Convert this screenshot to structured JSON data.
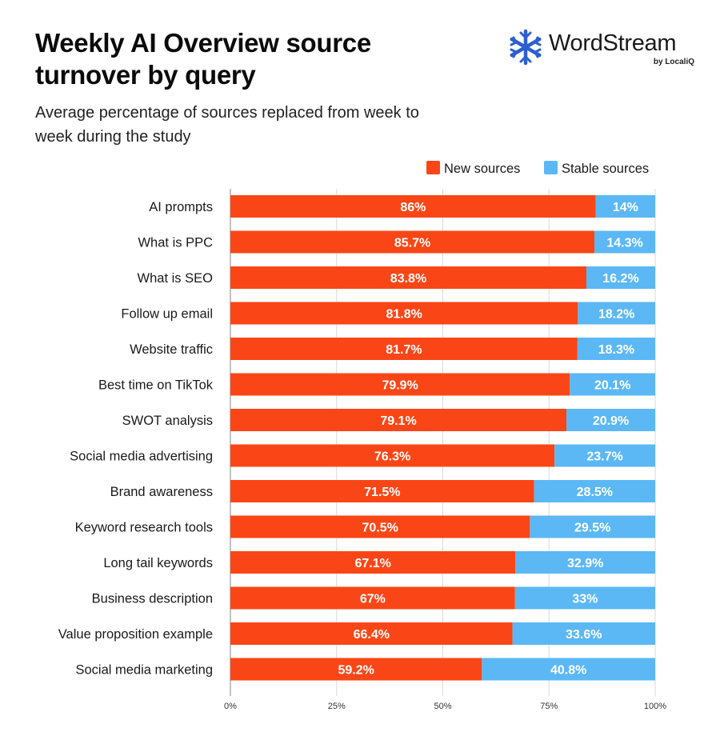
{
  "header": {
    "title": "Weekly AI Overview source turnover by query",
    "subtitle": "Average percentage of sources replaced from week to week during the study"
  },
  "brand": {
    "name": "WordStream",
    "sub": "by LocaliQ",
    "icon": "snowflake-logo-icon",
    "color": "#2d5fd0"
  },
  "chart_data": {
    "type": "bar",
    "orientation": "horizontal",
    "stacked": true,
    "title": "Weekly AI Overview source turnover by query",
    "subtitle": "Average percentage of sources replaced from week to week during the study",
    "categories": [
      "AI prompts",
      "What is PPC",
      "What is SEO",
      "Follow up email",
      "Website traffic",
      "Best time on TikTok",
      "SWOT analysis",
      "Social media advertising",
      "Brand awareness",
      "Keyword research tools",
      "Long tail keywords",
      "Business description",
      "Value proposition example",
      "Social media marketing"
    ],
    "series": [
      {
        "name": "New sources",
        "color": "#fa4616",
        "values": [
          86,
          85.7,
          83.8,
          81.8,
          81.7,
          79.9,
          79.1,
          76.3,
          71.5,
          70.5,
          67.1,
          67,
          66.4,
          59.2
        ],
        "labels": [
          "86%",
          "85.7%",
          "83.8%",
          "81.8%",
          "81.7%",
          "79.9%",
          "79.1%",
          "76.3%",
          "71.5%",
          "70.5%",
          "67.1%",
          "67%",
          "66.4%",
          "59.2%"
        ]
      },
      {
        "name": "Stable sources",
        "color": "#5bb8f5",
        "values": [
          14,
          14.3,
          16.2,
          18.2,
          18.3,
          20.1,
          20.9,
          23.7,
          28.5,
          29.5,
          32.9,
          33,
          33.6,
          40.8
        ],
        "labels": [
          "14%",
          "14.3%",
          "16.2%",
          "18.2%",
          "18.3%",
          "20.1%",
          "20.9%",
          "23.7%",
          "28.5%",
          "29.5%",
          "32.9%",
          "33%",
          "33.6%",
          "40.8%"
        ]
      }
    ],
    "xlim": [
      0,
      100
    ],
    "xticks": [
      0,
      25,
      50,
      75,
      100
    ],
    "xtick_labels": [
      "0%",
      "25%",
      "50%",
      "75%",
      "100%"
    ],
    "grid": true,
    "legend_position": "top-right",
    "xlabel": "",
    "ylabel": ""
  }
}
